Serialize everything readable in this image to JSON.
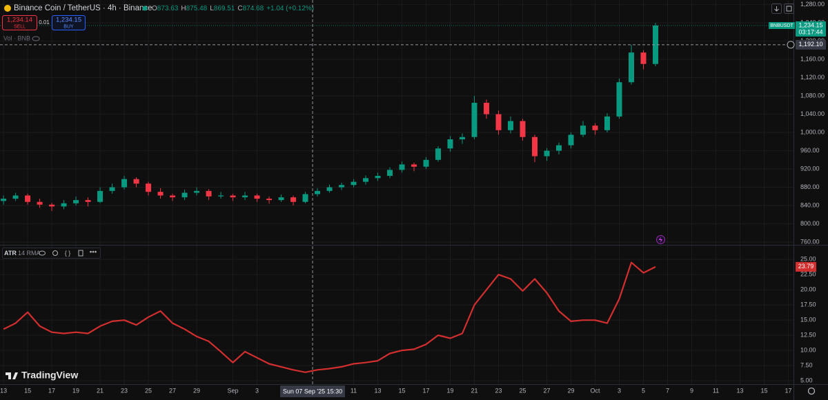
{
  "header": {
    "symbol": "Binance Coin / TetherUS · 4h · Binance",
    "ohlc": [
      {
        "label": "O",
        "value": "873.63"
      },
      {
        "label": "H",
        "value": "875.48"
      },
      {
        "label": "L",
        "value": "869.51"
      },
      {
        "label": "C",
        "value": "874.68"
      }
    ],
    "change": "+1.04 (+0.12%)",
    "trade": {
      "sell_price": "1,234.14",
      "sell": "SELL",
      "lot": "0.01",
      "buy_price": "1,234.15",
      "buy": "BUY"
    },
    "volume_label": "Vol · BNB",
    "brand": "TradingView"
  },
  "chart_data": [
    {
      "type": "candlestick",
      "up_color": "#089981",
      "down_color": "#f23645",
      "x": [
        0,
        1,
        2,
        3,
        4,
        5,
        6,
        7,
        8,
        9,
        10,
        11,
        12,
        13,
        14,
        15,
        16,
        17,
        18,
        19,
        20,
        21,
        22,
        23,
        24,
        25,
        26,
        27,
        28,
        29,
        30,
        31,
        32,
        33,
        34,
        35,
        36,
        37,
        38,
        39,
        40,
        41,
        42,
        43,
        44,
        45,
        46,
        47,
        48,
        49,
        50,
        51,
        52,
        53,
        54
      ],
      "open": [
        850,
        855,
        862,
        848,
        842,
        838,
        845,
        852,
        848,
        872,
        880,
        898,
        888,
        870,
        862,
        858,
        868,
        872,
        860,
        862,
        858,
        862,
        855,
        852,
        858,
        848,
        865,
        872,
        880,
        885,
        892,
        900,
        905,
        918,
        930,
        925,
        940,
        965,
        985,
        990,
        1065,
        1040,
        1005,
        1025,
        990,
        948,
        960,
        972,
        995,
        1015,
        1005,
        1035,
        1110,
        1175,
        1150
      ],
      "high": [
        862,
        868,
        866,
        855,
        846,
        852,
        860,
        858,
        880,
        888,
        905,
        902,
        892,
        878,
        866,
        875,
        880,
        876,
        870,
        866,
        870,
        866,
        860,
        864,
        862,
        870,
        878,
        886,
        890,
        898,
        906,
        912,
        924,
        936,
        934,
        946,
        970,
        992,
        998,
        1080,
        1072,
        1048,
        1035,
        1030,
        995,
        966,
        978,
        1000,
        1025,
        1020,
        1042,
        1118,
        1192,
        1180,
        1240
      ],
      "low": [
        842,
        850,
        842,
        835,
        828,
        832,
        840,
        838,
        845,
        866,
        875,
        880,
        862,
        855,
        850,
        852,
        862,
        852,
        855,
        850,
        852,
        848,
        844,
        848,
        840,
        845,
        860,
        868,
        874,
        880,
        886,
        894,
        900,
        912,
        915,
        920,
        936,
        958,
        975,
        985,
        1030,
        995,
        998,
        982,
        935,
        938,
        952,
        965,
        990,
        995,
        1000,
        1030,
        1105,
        1138,
        1145
      ],
      "close": [
        855,
        862,
        848,
        842,
        838,
        845,
        852,
        848,
        872,
        880,
        898,
        888,
        870,
        862,
        858,
        868,
        872,
        860,
        862,
        858,
        862,
        855,
        852,
        858,
        848,
        865,
        872,
        880,
        885,
        892,
        900,
        905,
        918,
        930,
        925,
        940,
        965,
        985,
        990,
        1065,
        1040,
        1005,
        1025,
        990,
        948,
        960,
        972,
        995,
        1015,
        1005,
        1035,
        1110,
        1175,
        1150,
        1234.15
      ],
      "last_price_label": "1,234.15",
      "symbol_tag": "BNBUSDT",
      "countdown": "03:17:44",
      "xlim": [
        -0.29,
        65.43
      ],
      "ylim": [
        754,
        1290
      ],
      "yticks": [
        {
          "value": 1280,
          "label": "1,280.00"
        },
        {
          "value": 1240,
          "label": "1,240.00"
        },
        {
          "value": 1200,
          "label": "1,200.00"
        },
        {
          "value": 1160,
          "label": "1,160.00"
        },
        {
          "value": 1120,
          "label": "1,120.00"
        },
        {
          "value": 1080,
          "label": "1,080.00"
        },
        {
          "value": 1040,
          "label": "1,040.00"
        },
        {
          "value": 1000,
          "label": "1,000.00"
        },
        {
          "value": 960,
          "label": "960.00"
        },
        {
          "value": 920,
          "label": "920.00"
        },
        {
          "value": 880,
          "label": "880.00"
        },
        {
          "value": 840,
          "label": "840.00"
        },
        {
          "value": 800,
          "label": "800.00"
        },
        {
          "value": 760,
          "label": "760.00"
        }
      ],
      "crosshair": {
        "x": 25.6,
        "price": {
          "value": 1192.1,
          "label": "1,192.10"
        },
        "time_label": "Sun 07 Sep '25 15:30"
      },
      "grid": true
    },
    {
      "type": "line",
      "name": "ATR",
      "params": "14 RMA",
      "color": "#d32f2f",
      "x": [
        0,
        1,
        2,
        3,
        4,
        5,
        6,
        7,
        8,
        9,
        10,
        11,
        12,
        13,
        14,
        15,
        16,
        17,
        18,
        19,
        20,
        21,
        22,
        23,
        24,
        25,
        26,
        27,
        28,
        29,
        30,
        31,
        32,
        33,
        34,
        35,
        36,
        37,
        38,
        39,
        40,
        41,
        42,
        43,
        44,
        45,
        46,
        47,
        48,
        49,
        50,
        51,
        52,
        53,
        54
      ],
      "values": [
        13.5,
        14.5,
        16.3,
        14,
        13,
        12.8,
        13,
        12.8,
        14,
        14.8,
        15,
        14.2,
        15.5,
        16.5,
        14.5,
        13.5,
        12.3,
        11.5,
        9.8,
        8,
        9.8,
        8.8,
        7.8,
        7.3,
        6.8,
        6.4,
        6.8,
        7,
        7.3,
        7.8,
        8,
        8.3,
        9.5,
        10,
        10.2,
        11,
        12.5,
        12,
        12.8,
        17.5,
        20,
        22.5,
        21.8,
        19.8,
        21.8,
        19.5,
        16.5,
        14.8,
        15,
        15,
        14.5,
        18.5,
        24.5,
        22.8,
        23.79
      ],
      "xlim": [
        -0.29,
        65.43
      ],
      "ylim": [
        4.1,
        27.3
      ],
      "yticks": [
        {
          "value": 25,
          "label": "25.00"
        },
        {
          "value": 22.5,
          "label": "22.50"
        },
        {
          "value": 20,
          "label": "20.00"
        },
        {
          "value": 17.5,
          "label": "17.50"
        },
        {
          "value": 15,
          "label": "15.00"
        },
        {
          "value": 12.5,
          "label": "12.50"
        },
        {
          "value": 10,
          "label": "10.00"
        },
        {
          "value": 7.5,
          "label": "7.50"
        },
        {
          "value": 5,
          "label": "5.00"
        }
      ],
      "xticks": [
        {
          "value": 0,
          "label": "13"
        },
        {
          "value": 2,
          "label": "15"
        },
        {
          "value": 4,
          "label": "17"
        },
        {
          "value": 6,
          "label": "19"
        },
        {
          "value": 8,
          "label": "21"
        },
        {
          "value": 10,
          "label": "23"
        },
        {
          "value": 12,
          "label": "25"
        },
        {
          "value": 14,
          "label": "27"
        },
        {
          "value": 16,
          "label": "29"
        },
        {
          "value": 19,
          "label": "Sep"
        },
        {
          "value": 21,
          "label": "3"
        },
        {
          "value": 29,
          "label": "11"
        },
        {
          "value": 31,
          "label": "13"
        },
        {
          "value": 33,
          "label": "15"
        },
        {
          "value": 35,
          "label": "17"
        },
        {
          "value": 37,
          "label": "19"
        },
        {
          "value": 39,
          "label": "21"
        },
        {
          "value": 41,
          "label": "23"
        },
        {
          "value": 43,
          "label": "25"
        },
        {
          "value": 45,
          "label": "27"
        },
        {
          "value": 47,
          "label": "29"
        },
        {
          "value": 49,
          "label": "Oct"
        },
        {
          "value": 51,
          "label": "3"
        },
        {
          "value": 53,
          "label": "5"
        },
        {
          "value": 55,
          "label": "7"
        },
        {
          "value": 57,
          "label": "9"
        },
        {
          "value": 59,
          "label": "11"
        },
        {
          "value": 61,
          "label": "13"
        },
        {
          "value": 63,
          "label": "15"
        },
        {
          "value": 65,
          "label": "17"
        }
      ],
      "grid": true
    }
  ]
}
